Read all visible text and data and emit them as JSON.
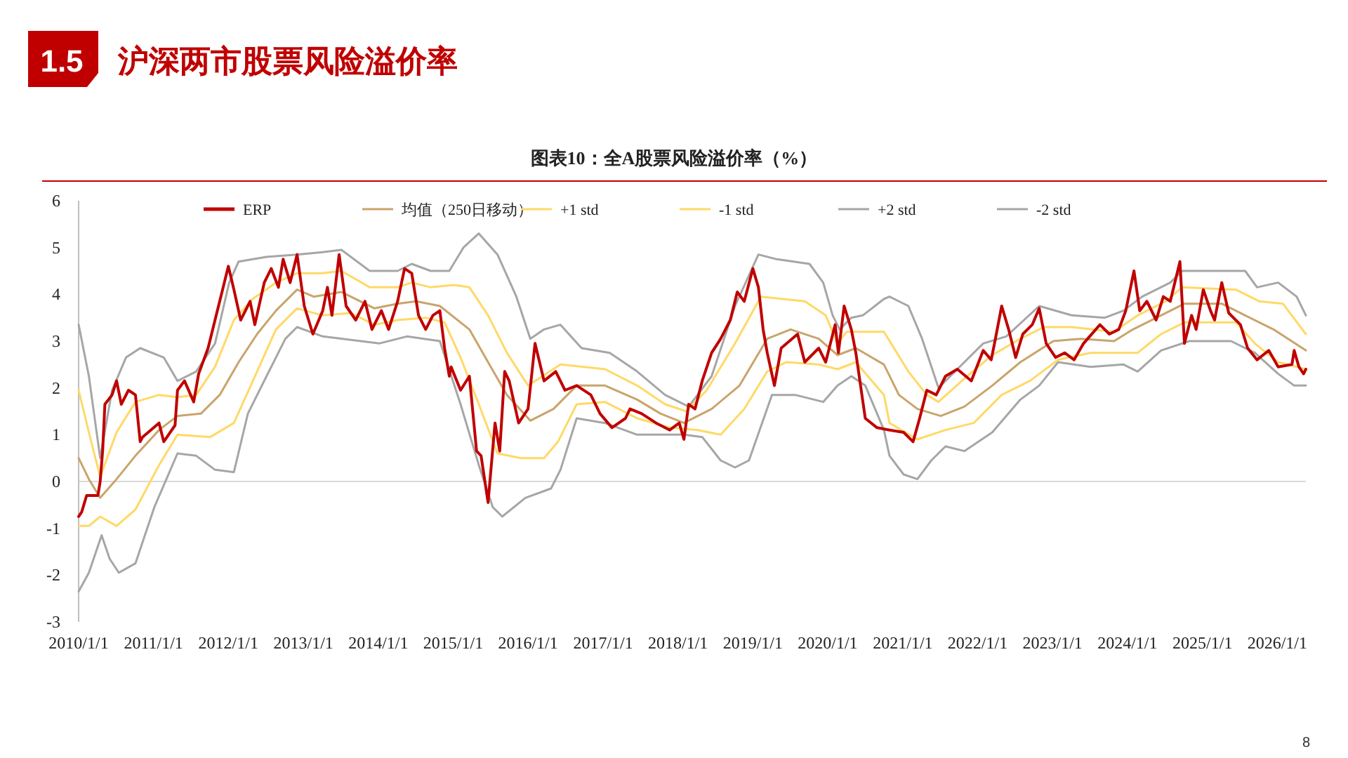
{
  "chart_data": {
    "type": "line",
    "title": "图表10：全A股票风险溢价率（%）",
    "annotations": [
      "1.5",
      "沪深两市股票风险溢价率",
      "8"
    ],
    "xlim": [
      "2010-01-01",
      "2026-05-20"
    ],
    "ylim": [
      -3,
      6
    ],
    "yticks": [
      -3,
      -2,
      -1,
      0,
      1,
      2,
      3,
      4,
      5,
      6
    ],
    "xticks": [
      {
        "value": "2010-01-01",
        "label": "2010/1/1"
      },
      {
        "value": "2011-01-01",
        "label": "2011/1/1"
      },
      {
        "value": "2012-01-01",
        "label": "2012/1/1"
      },
      {
        "value": "2013-01-01",
        "label": "2013/1/1"
      },
      {
        "value": "2014-01-01",
        "label": "2014/1/1"
      },
      {
        "value": "2015-01-01",
        "label": "2015/1/1"
      },
      {
        "value": "2016-01-01",
        "label": "2016/1/1"
      },
      {
        "value": "2017-01-01",
        "label": "2017/1/1"
      },
      {
        "value": "2018-01-01",
        "label": "2018/1/1"
      },
      {
        "value": "2019-01-01",
        "label": "2019/1/1"
      },
      {
        "value": "2020-01-01",
        "label": "2020/1/1"
      },
      {
        "value": "2021-01-01",
        "label": "2021/1/1"
      },
      {
        "value": "2022-01-01",
        "label": "2022/1/1"
      },
      {
        "value": "2023-01-01",
        "label": "2023/1/1"
      },
      {
        "value": "2024-01-01",
        "label": "2024/1/1"
      },
      {
        "value": "2025-01-01",
        "label": "2025/1/1"
      },
      {
        "value": "2026-01-01",
        "label": "2026/1/1"
      }
    ],
    "ref_lines": [
      {
        "axis": "y",
        "value": 0,
        "color": "#d9d9d9"
      }
    ],
    "legend": "top",
    "grid": false,
    "marker": "none",
    "line_style": "solid",
    "series": [
      {
        "name": "-2 std",
        "color": "#a6a6a6",
        "x": [
          "2010-01-01",
          "2010-02-20",
          "2010-04-23",
          "2010-06-01",
          "2010-07-16",
          "2010-10-05",
          "2011-01-05",
          "2011-04-28",
          "2011-07-28",
          "2011-10-28",
          "2012-01-28",
          "2012-04-05",
          "2012-07-05",
          "2012-10-05",
          "2012-12-01",
          "2013-04-05",
          "2014-01-05",
          "2014-05-20",
          "2014-10-28",
          "2015-02-06",
          "2015-05-06",
          "2015-07-13",
          "2015-08-28",
          "2015-12-19",
          "2016-04-22",
          "2016-06-07",
          "2016-08-25",
          "2017-01-10",
          "2017-06-16",
          "2018-01-30",
          "2018-04-29",
          "2018-07-28",
          "2018-10-06",
          "2018-12-13",
          "2019-04-04",
          "2019-07-26",
          "2019-12-10",
          "2020-02-18",
          "2020-04-25",
          "2020-07-02",
          "2020-10-01",
          "2020-10-28",
          "2021-01-05",
          "2021-03-13",
          "2021-05-20",
          "2021-07-28",
          "2021-10-28",
          "2022-03-13",
          "2022-07-28",
          "2022-10-28",
          "2023-01-28",
          "2023-07-05",
          "2023-12-13",
          "2024-02-20",
          "2024-06-13",
          "2024-10-28",
          "2025-05-20",
          "2025-09-13",
          "2026-01-05",
          "2026-03-24",
          "2026-05-20"
        ],
        "values": [
          -2.35,
          -1.95,
          -1.15,
          -1.65,
          -1.95,
          -1.75,
          -0.55,
          0.6,
          0.55,
          0.25,
          0.2,
          1.45,
          2.25,
          3.05,
          3.3,
          3.1,
          2.95,
          3.1,
          3.0,
          1.65,
          0.35,
          -0.55,
          -0.75,
          -0.35,
          -0.15,
          0.25,
          1.35,
          1.25,
          1.0,
          1.0,
          0.95,
          0.45,
          0.3,
          0.45,
          1.85,
          1.85,
          1.7,
          2.05,
          2.25,
          2.05,
          1.1,
          0.55,
          0.15,
          0.05,
          0.45,
          0.75,
          0.65,
          1.05,
          1.75,
          2.05,
          2.55,
          2.45,
          2.5,
          2.35,
          2.8,
          3.0,
          3.0,
          2.75,
          2.3,
          2.05,
          2.05
        ]
      },
      {
        "name": "+2 std",
        "color": "#a6a6a6",
        "x": [
          "2010-01-01",
          "2010-02-20",
          "2010-04-16",
          "2010-06-13",
          "2010-08-20",
          "2010-10-28",
          "2011-02-20",
          "2011-04-28",
          "2011-07-28",
          "2011-10-28",
          "2012-01-05",
          "2012-02-20",
          "2012-07-05",
          "2012-12-01",
          "2013-04-05",
          "2013-07-05",
          "2013-11-20",
          "2014-04-05",
          "2014-06-13",
          "2014-09-13",
          "2014-12-13",
          "2015-02-20",
          "2015-05-06",
          "2015-08-05",
          "2015-11-05",
          "2016-01-12",
          "2016-03-19",
          "2016-06-07",
          "2016-09-18",
          "2017-02-02",
          "2017-06-16",
          "2017-10-30",
          "2018-02-22",
          "2018-06-14",
          "2018-10-06",
          "2019-01-28",
          "2019-04-27",
          "2019-10-04",
          "2019-12-10",
          "2020-01-25",
          "2020-02-28",
          "2020-04-25",
          "2020-06-20",
          "2020-10-01",
          "2020-10-28",
          "2021-01-28",
          "2021-04-05",
          "2021-06-24",
          "2021-10-28",
          "2022-01-28",
          "2022-05-20",
          "2022-10-28",
          "2023-04-05",
          "2023-09-13",
          "2023-12-13",
          "2024-03-13",
          "2024-07-28",
          "2024-09-24",
          "2025-01-28",
          "2025-07-28",
          "2025-09-24",
          "2026-01-05",
          "2026-04-05",
          "2026-05-20"
        ],
        "values": [
          3.35,
          2.25,
          0.5,
          1.95,
          2.65,
          2.85,
          2.65,
          2.15,
          2.35,
          2.95,
          4.25,
          4.7,
          4.8,
          4.85,
          4.9,
          4.95,
          4.5,
          4.5,
          4.65,
          4.5,
          4.5,
          5.0,
          5.3,
          4.85,
          3.95,
          3.05,
          3.25,
          3.35,
          2.85,
          2.75,
          2.35,
          1.85,
          1.6,
          2.25,
          3.75,
          4.85,
          4.75,
          4.65,
          4.25,
          3.55,
          3.25,
          3.5,
          3.55,
          3.9,
          3.95,
          3.75,
          3.05,
          2.0,
          2.55,
          2.95,
          3.1,
          3.75,
          3.55,
          3.5,
          3.65,
          3.95,
          4.25,
          4.5,
          4.5,
          4.5,
          4.15,
          4.25,
          3.95,
          3.55
        ]
      },
      {
        "name": "-1 std",
        "color": "#ffd966",
        "x": [
          "2010-01-01",
          "2010-02-20",
          "2010-04-16",
          "2010-07-05",
          "2010-10-05",
          "2011-01-28",
          "2011-04-28",
          "2011-10-05",
          "2012-01-28",
          "2012-05-20",
          "2012-08-20",
          "2012-12-01",
          "2013-04-05",
          "2013-08-20",
          "2013-12-13",
          "2014-04-05",
          "2014-08-20",
          "2014-11-20",
          "2015-02-06",
          "2015-05-06",
          "2015-08-05",
          "2015-11-27",
          "2016-03-19",
          "2016-05-26",
          "2016-08-25",
          "2017-01-10",
          "2017-06-16",
          "2017-11-22",
          "2018-04-07",
          "2018-07-28",
          "2018-11-20",
          "2019-03-12",
          "2019-06-12",
          "2019-11-18",
          "2020-02-18",
          "2020-05-17",
          "2020-10-01",
          "2020-10-28",
          "2021-03-13",
          "2021-07-28",
          "2021-12-13",
          "2022-04-28",
          "2022-09-13",
          "2023-01-28",
          "2023-07-05",
          "2024-02-20",
          "2024-06-13",
          "2024-10-05",
          "2025-06-13",
          "2025-09-13",
          "2026-01-05",
          "2026-05-20"
        ],
        "values": [
          -0.95,
          -0.95,
          -0.75,
          -0.95,
          -0.6,
          0.35,
          1.0,
          0.95,
          1.25,
          2.35,
          3.25,
          3.7,
          3.55,
          3.6,
          3.35,
          3.45,
          3.5,
          3.4,
          2.65,
          1.65,
          0.6,
          0.5,
          0.5,
          0.85,
          1.65,
          1.7,
          1.35,
          1.15,
          1.1,
          1.0,
          1.55,
          2.35,
          2.55,
          2.5,
          2.4,
          2.55,
          1.85,
          1.25,
          0.9,
          1.1,
          1.25,
          1.85,
          2.15,
          2.6,
          2.75,
          2.75,
          3.15,
          3.4,
          3.4,
          2.95,
          2.55,
          2.4
        ]
      },
      {
        "name": "+1 std",
        "color": "#ffd966",
        "x": [
          "2010-01-01",
          "2010-02-20",
          "2010-04-16",
          "2010-07-05",
          "2010-10-05",
          "2011-01-28",
          "2011-04-28",
          "2011-07-28",
          "2011-10-28",
          "2012-01-28",
          "2012-04-28",
          "2012-08-20",
          "2012-12-01",
          "2013-04-05",
          "2013-07-05",
          "2013-11-20",
          "2014-04-05",
          "2014-06-13",
          "2014-09-13",
          "2015-01-05",
          "2015-03-21",
          "2015-06-20",
          "2015-09-20",
          "2016-01-01",
          "2016-06-07",
          "2017-01-10",
          "2017-06-16",
          "2017-10-30",
          "2018-02-11",
          "2018-05-21",
          "2018-10-06",
          "2019-02-09",
          "2019-09-11",
          "2019-12-22",
          "2020-02-18",
          "2020-04-02",
          "2020-10-01",
          "2021-01-28",
          "2021-04-28",
          "2021-06-24",
          "2021-10-28",
          "2022-03-13",
          "2022-07-28",
          "2022-11-20",
          "2023-04-05",
          "2023-10-28",
          "2024-02-20",
          "2024-07-05",
          "2024-09-24",
          "2025-06-13",
          "2025-10-05",
          "2026-01-28",
          "2026-05-20"
        ],
        "values": [
          1.95,
          1.05,
          0.1,
          1.05,
          1.7,
          1.85,
          1.8,
          1.85,
          2.45,
          3.45,
          3.9,
          4.25,
          4.45,
          4.45,
          4.5,
          4.15,
          4.15,
          4.25,
          4.15,
          4.2,
          4.15,
          3.55,
          2.75,
          2.05,
          2.5,
          2.4,
          2.05,
          1.65,
          1.5,
          1.95,
          2.95,
          3.95,
          3.85,
          3.55,
          2.95,
          3.2,
          3.2,
          2.35,
          1.85,
          1.7,
          2.2,
          2.7,
          3.05,
          3.3,
          3.3,
          3.2,
          3.55,
          3.85,
          4.15,
          4.1,
          3.85,
          3.8,
          3.15
        ]
      },
      {
        "name": "均值（250日移动）",
        "color": "#c9a46b",
        "x": [
          "2010-01-01",
          "2010-02-20",
          "2010-04-16",
          "2010-07-05",
          "2010-10-05",
          "2011-01-28",
          "2011-04-28",
          "2011-08-20",
          "2011-11-20",
          "2012-02-20",
          "2012-05-20",
          "2012-08-20",
          "2012-12-01",
          "2013-02-20",
          "2013-07-05",
          "2013-12-13",
          "2014-04-05",
          "2014-07-05",
          "2014-10-28",
          "2015-03-21",
          "2015-06-20",
          "2015-09-20",
          "2016-01-12",
          "2016-05-04",
          "2016-08-25",
          "2017-01-10",
          "2017-06-16",
          "2017-10-08",
          "2018-01-30",
          "2018-06-14",
          "2018-10-28",
          "2019-03-12",
          "2019-07-04",
          "2019-11-18",
          "2020-02-18",
          "2020-05-17",
          "2020-10-01",
          "2020-12-13",
          "2021-03-13",
          "2021-07-05",
          "2021-10-28",
          "2022-03-13",
          "2022-07-28",
          "2023-01-05",
          "2023-05-20",
          "2023-10-28",
          "2024-01-28",
          "2024-06-13",
          "2024-10-05",
          "2025-04-05",
          "2025-07-28",
          "2025-12-13",
          "2026-05-20"
        ],
        "values": [
          0.5,
          0.05,
          -0.35,
          0.05,
          0.55,
          1.1,
          1.4,
          1.45,
          1.85,
          2.55,
          3.15,
          3.65,
          4.1,
          3.95,
          4.05,
          3.7,
          3.8,
          3.85,
          3.75,
          3.25,
          2.55,
          1.85,
          1.3,
          1.55,
          2.05,
          2.05,
          1.75,
          1.45,
          1.25,
          1.55,
          2.05,
          3.05,
          3.25,
          3.05,
          2.7,
          2.85,
          2.5,
          1.85,
          1.55,
          1.4,
          1.6,
          2.05,
          2.55,
          3.0,
          3.05,
          3.0,
          3.25,
          3.55,
          3.8,
          3.8,
          3.55,
          3.25,
          2.8
        ]
      },
      {
        "name": "ERP",
        "color": "#c00000",
        "x": [
          "2010-01-01",
          "2010-01-16",
          "2010-02-09",
          "2010-04-05",
          "2010-04-16",
          "2010-04-28",
          "2010-05-09",
          "2010-06-13",
          "2010-07-05",
          "2010-07-28",
          "2010-09-01",
          "2010-10-05",
          "2010-10-28",
          "2010-11-09",
          "2011-01-28",
          "2011-02-20",
          "2011-04-16",
          "2011-04-28",
          "2011-06-01",
          "2011-07-16",
          "2011-08-09",
          "2011-09-24",
          "2011-10-28",
          "2011-12-01",
          "2012-01-01",
          "2012-01-28",
          "2012-03-01",
          "2012-04-16",
          "2012-05-09",
          "2012-06-24",
          "2012-07-28",
          "2012-09-01",
          "2012-09-24",
          "2012-10-28",
          "2012-12-01",
          "2013-01-05",
          "2013-02-16",
          "2013-04-05",
          "2013-04-28",
          "2013-05-20",
          "2013-06-24",
          "2013-07-28",
          "2013-09-13",
          "2013-10-28",
          "2013-12-01",
          "2014-01-16",
          "2014-02-20",
          "2014-04-05",
          "2014-05-09",
          "2014-06-13",
          "2014-07-16",
          "2014-08-20",
          "2014-09-24",
          "2014-10-28",
          "2014-11-20",
          "2014-12-13",
          "2014-12-22",
          "2015-02-06",
          "2015-03-21",
          "2015-04-25",
          "2015-05-17",
          "2015-06-20",
          "2015-07-24",
          "2015-08-16",
          "2015-09-09",
          "2015-10-01",
          "2015-11-16",
          "2016-01-01",
          "2016-02-04",
          "2016-02-26",
          "2016-03-19",
          "2016-05-15",
          "2016-06-29",
          "2016-08-25",
          "2016-11-02",
          "2016-12-17",
          "2017-02-13",
          "2017-04-20",
          "2017-05-12",
          "2017-07-08",
          "2017-09-16",
          "2017-11-22",
          "2018-01-07",
          "2018-01-30",
          "2018-02-22",
          "2018-03-25",
          "2018-04-29",
          "2018-06-14",
          "2018-07-28",
          "2018-09-13",
          "2018-10-17",
          "2018-11-20",
          "2019-01-01",
          "2019-01-28",
          "2019-02-20",
          "2019-03-12",
          "2019-04-16",
          "2019-05-19",
          "2019-08-07",
          "2019-09-11",
          "2019-11-18",
          "2019-12-22",
          "2020-02-06",
          "2020-02-22",
          "2020-03-21",
          "2020-04-25",
          "2020-05-17",
          "2020-07-02",
          "2020-08-28",
          "2020-10-28",
          "2021-01-05",
          "2021-02-20",
          "2021-03-24",
          "2021-04-28",
          "2021-06-13",
          "2021-07-28",
          "2021-09-24",
          "2021-12-01",
          "2022-01-28",
          "2022-03-08",
          "2022-03-24",
          "2022-04-28",
          "2022-06-01",
          "2022-07-05",
          "2022-08-09",
          "2022-09-24",
          "2022-10-28",
          "2022-12-01",
          "2023-01-16",
          "2023-03-01",
          "2023-04-16",
          "2023-06-01",
          "2023-08-20",
          "2023-10-05",
          "2023-11-20",
          "2023-12-24",
          "2024-02-02",
          "2024-03-01",
          "2024-04-05",
          "2024-05-20",
          "2024-06-24",
          "2024-07-28",
          "2024-09-13",
          "2024-10-05",
          "2024-11-09",
          "2024-12-01",
          "2025-01-05",
          "2025-02-09",
          "2025-03-01",
          "2025-04-05",
          "2025-05-09",
          "2025-07-05",
          "2025-08-09",
          "2025-09-24",
          "2025-11-20",
          "2026-01-05",
          "2026-03-13",
          "2026-03-24",
          "2026-04-16",
          "2026-05-09",
          "2026-05-20"
        ],
        "values": [
          -0.75,
          -0.65,
          -0.3,
          -0.3,
          0,
          0.65,
          1.65,
          1.85,
          2.15,
          1.65,
          1.95,
          1.85,
          0.85,
          0.95,
          1.25,
          0.85,
          1.2,
          1.95,
          2.15,
          1.7,
          2.3,
          2.85,
          3.45,
          4.05,
          4.6,
          4.1,
          3.45,
          3.85,
          3.35,
          4.25,
          4.55,
          4.15,
          4.75,
          4.25,
          4.85,
          3.75,
          3.15,
          3.65,
          4.15,
          3.55,
          4.85,
          3.75,
          3.45,
          3.85,
          3.25,
          3.65,
          3.25,
          3.85,
          4.55,
          4.45,
          3.55,
          3.25,
          3.55,
          3.65,
          2.85,
          2.25,
          2.45,
          1.95,
          2.25,
          0.65,
          0.55,
          -0.45,
          1.25,
          0.65,
          2.35,
          2.15,
          1.25,
          1.55,
          2.95,
          2.55,
          2.15,
          2.35,
          1.95,
          2.05,
          1.85,
          1.45,
          1.15,
          1.35,
          1.55,
          1.45,
          1.25,
          1.1,
          1.25,
          0.9,
          1.65,
          1.55,
          2.15,
          2.75,
          3.05,
          3.45,
          4.05,
          3.85,
          4.55,
          4.15,
          3.25,
          2.75,
          2.05,
          2.85,
          3.15,
          2.55,
          2.85,
          2.55,
          3.35,
          2.75,
          3.75,
          3.25,
          2.75,
          1.35,
          1.15,
          1.1,
          1.05,
          0.85,
          1.35,
          1.95,
          1.85,
          2.25,
          2.4,
          2.15,
          2.8,
          2.6,
          2.95,
          3.75,
          3.25,
          2.65,
          3.15,
          3.35,
          3.7,
          2.95,
          2.65,
          2.75,
          2.6,
          2.95,
          3.35,
          3.15,
          3.25,
          3.65,
          4.5,
          3.65,
          3.85,
          3.45,
          3.95,
          3.85,
          4.7,
          2.95,
          3.55,
          3.25,
          4.1,
          3.65,
          3.45,
          4.25,
          3.6,
          3.35,
          2.85,
          2.6,
          2.8,
          2.45,
          2.5,
          2.8,
          2.45,
          2.3,
          2.4
        ]
      }
    ]
  }
}
